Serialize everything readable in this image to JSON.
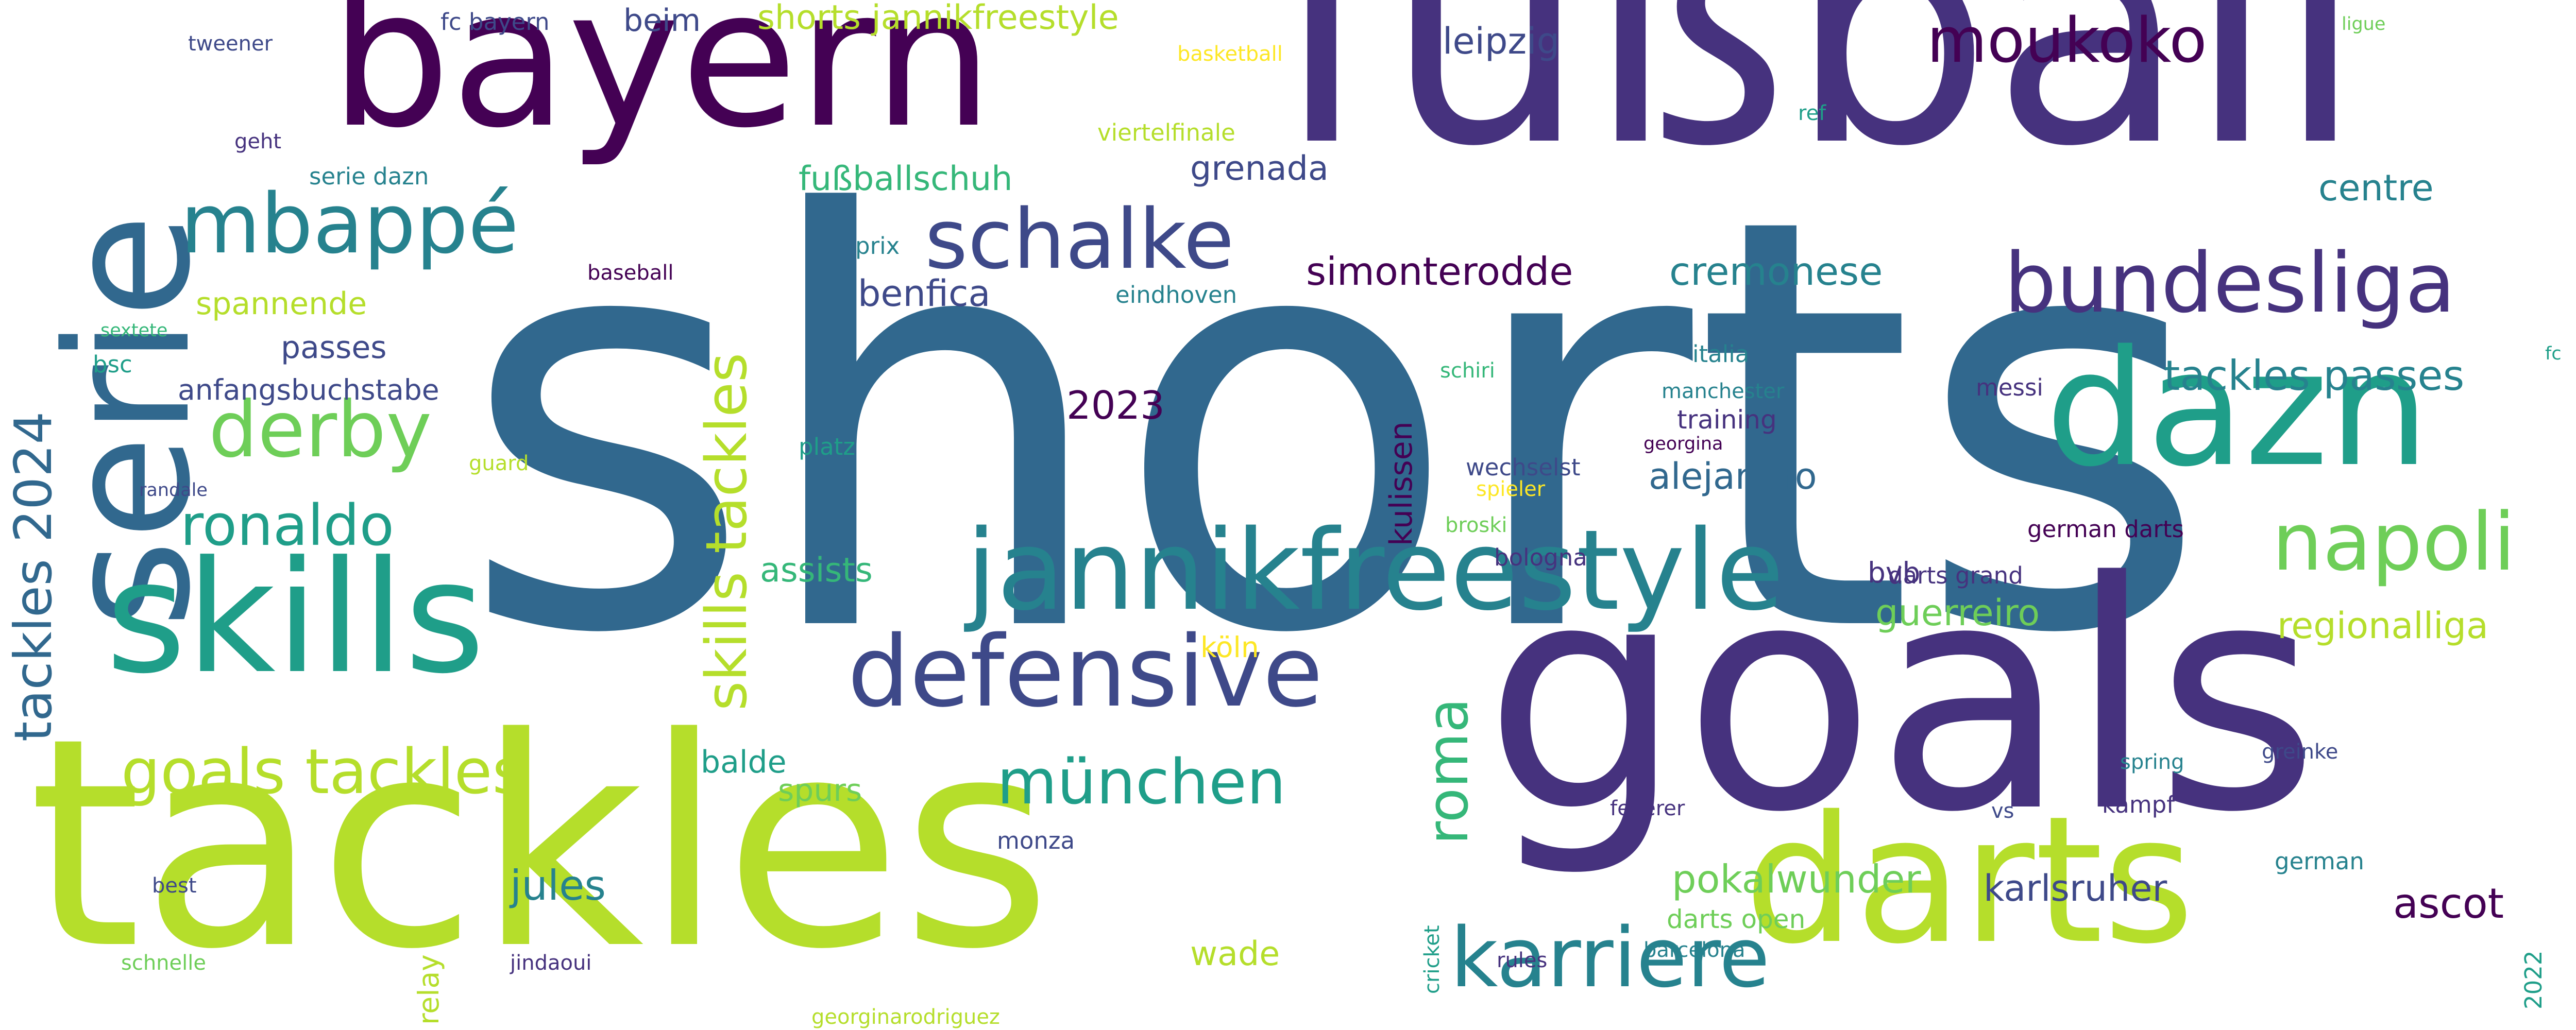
{
  "colors": {
    "dark_purple": "#440154",
    "indigo": "#46327e",
    "slate_blue": "#3e4989",
    "blue": "#31688e",
    "steel_teal": "#26828e",
    "teal": "#1f9e89",
    "green": "#35b779",
    "light_green": "#6ece58",
    "lime": "#b5de2b",
    "yellow": "#fde725"
  },
  "words": [
    {
      "text": "shorts",
      "color": "#31688e"
    },
    {
      "text": "fußball",
      "color": "#46327e"
    },
    {
      "text": "goals",
      "color": "#46327e"
    },
    {
      "text": "tackles",
      "color": "#b5de2b"
    },
    {
      "text": "bayern",
      "color": "#440154"
    },
    {
      "text": "serie",
      "color": "#31688e"
    },
    {
      "text": "skills",
      "color": "#1f9e89"
    },
    {
      "text": "darts",
      "color": "#b5de2b"
    },
    {
      "text": "dazn",
      "color": "#1f9e89"
    },
    {
      "text": "jannikfreestyle",
      "color": "#26828e"
    },
    {
      "text": "defensive",
      "color": "#3e4989"
    },
    {
      "text": "bundesliga",
      "color": "#46327e"
    },
    {
      "text": "karriere",
      "color": "#26828e"
    },
    {
      "text": "mbappé",
      "color": "#26828e"
    },
    {
      "text": "schalke",
      "color": "#3e4989"
    },
    {
      "text": "derby",
      "color": "#6ece58"
    },
    {
      "text": "napoli",
      "color": "#6ece58"
    },
    {
      "text": "goals tackles",
      "color": "#b5de2b"
    },
    {
      "text": "moukoko",
      "color": "#440154"
    },
    {
      "text": "münchen",
      "color": "#1f9e89"
    },
    {
      "text": "ronaldo",
      "color": "#1f9e89"
    },
    {
      "text": "skills tackles",
      "color": "#b5de2b"
    },
    {
      "text": "tackles 2024",
      "color": "#31688e"
    },
    {
      "text": "roma",
      "color": "#35b779"
    },
    {
      "text": "tackles passes",
      "color": "#26828e"
    },
    {
      "text": "shorts jannikfreestyle",
      "color": "#b5de2b"
    },
    {
      "text": "ascot",
      "color": "#440154"
    },
    {
      "text": "alejandro",
      "color": "#31688e"
    },
    {
      "text": "simonterodde",
      "color": "#440154"
    },
    {
      "text": "pokalwunder",
      "color": "#6ece58"
    },
    {
      "text": "karlsruher",
      "color": "#3e4989"
    },
    {
      "text": "cremonese",
      "color": "#26828e"
    },
    {
      "text": "regionalliga",
      "color": "#b5de2b"
    },
    {
      "text": "guerreiro",
      "color": "#6ece58"
    },
    {
      "text": "jules",
      "color": "#26828e"
    },
    {
      "text": "wade",
      "color": "#b5de2b"
    },
    {
      "text": "2023",
      "color": "#440154"
    },
    {
      "text": "benfica",
      "color": "#3e4989"
    },
    {
      "text": "leipzig",
      "color": "#3e4989"
    },
    {
      "text": "centre",
      "color": "#26828e"
    },
    {
      "text": "grenada",
      "color": "#3e4989"
    },
    {
      "text": "fußballschuh",
      "color": "#35b779"
    },
    {
      "text": "spannende",
      "color": "#b5de2b"
    },
    {
      "text": "passes",
      "color": "#3e4989"
    },
    {
      "text": "anfangsbuchstabe",
      "color": "#3e4989"
    },
    {
      "text": "assists",
      "color": "#35b779"
    },
    {
      "text": "balde",
      "color": "#1f9e89"
    },
    {
      "text": "spurs",
      "color": "#6ece58"
    },
    {
      "text": "beim",
      "color": "#3e4989"
    },
    {
      "text": "kulissen",
      "color": "#440154"
    },
    {
      "text": "bvb",
      "color": "#46327e"
    },
    {
      "text": "köln",
      "color": "#fde725"
    },
    {
      "text": "relay",
      "color": "#b5de2b"
    },
    {
      "text": "darts open",
      "color": "#6ece58"
    },
    {
      "text": "darts grand",
      "color": "#46327e"
    },
    {
      "text": "german darts",
      "color": "#440154"
    },
    {
      "text": "kampf",
      "color": "#46327e"
    },
    {
      "text": "german",
      "color": "#26828e"
    },
    {
      "text": "2022",
      "color": "#1f9e89"
    },
    {
      "text": "training",
      "color": "#46327e"
    },
    {
      "text": "viertelfinale",
      "color": "#b5de2b"
    },
    {
      "text": "serie dazn",
      "color": "#26828e"
    },
    {
      "text": "fc bayern",
      "color": "#3e4989"
    },
    {
      "text": "eindhoven",
      "color": "#26828e"
    },
    {
      "text": "prix",
      "color": "#26828e"
    },
    {
      "text": "baseball",
      "color": "#440154"
    },
    {
      "text": "italia",
      "color": "#26828e"
    },
    {
      "text": "manchester",
      "color": "#26828e"
    },
    {
      "text": "georgina",
      "color": "#440154"
    },
    {
      "text": "wechselst",
      "color": "#3e4989"
    },
    {
      "text": "spieler",
      "color": "#fde725"
    },
    {
      "text": "broski",
      "color": "#6ece58"
    },
    {
      "text": "bologna",
      "color": "#46327e"
    },
    {
      "text": "messi",
      "color": "#46327e"
    },
    {
      "text": "schiri",
      "color": "#35b779"
    },
    {
      "text": "platz",
      "color": "#1f9e89"
    },
    {
      "text": "monza",
      "color": "#3e4989"
    },
    {
      "text": "tweener",
      "color": "#3e4989"
    },
    {
      "text": "geht",
      "color": "#46327e"
    },
    {
      "text": "basketball",
      "color": "#fde725"
    },
    {
      "text": "ligue",
      "color": "#6ece58"
    },
    {
      "text": "ref",
      "color": "#1f9e89"
    },
    {
      "text": "fc",
      "color": "#1f9e89"
    },
    {
      "text": "bsc",
      "color": "#1f9e89"
    },
    {
      "text": "sextete",
      "color": "#35b779"
    },
    {
      "text": "guard",
      "color": "#b5de2b"
    },
    {
      "text": "randale",
      "color": "#3e4989"
    },
    {
      "text": "best",
      "color": "#3e4989"
    },
    {
      "text": "schnelle",
      "color": "#6ece58"
    },
    {
      "text": "jindaoui",
      "color": "#46327e"
    },
    {
      "text": "cricket",
      "color": "#1f9e89"
    },
    {
      "text": "rules",
      "color": "#46327e"
    },
    {
      "text": "barcelona",
      "color": "#26828e"
    },
    {
      "text": "federer",
      "color": "#46327e"
    },
    {
      "text": "vs",
      "color": "#3e4989"
    },
    {
      "text": "spring",
      "color": "#26828e"
    },
    {
      "text": "greinke",
      "color": "#3e4989"
    },
    {
      "text": "georginarodriguez",
      "color": "#b5de2b"
    }
  ]
}
